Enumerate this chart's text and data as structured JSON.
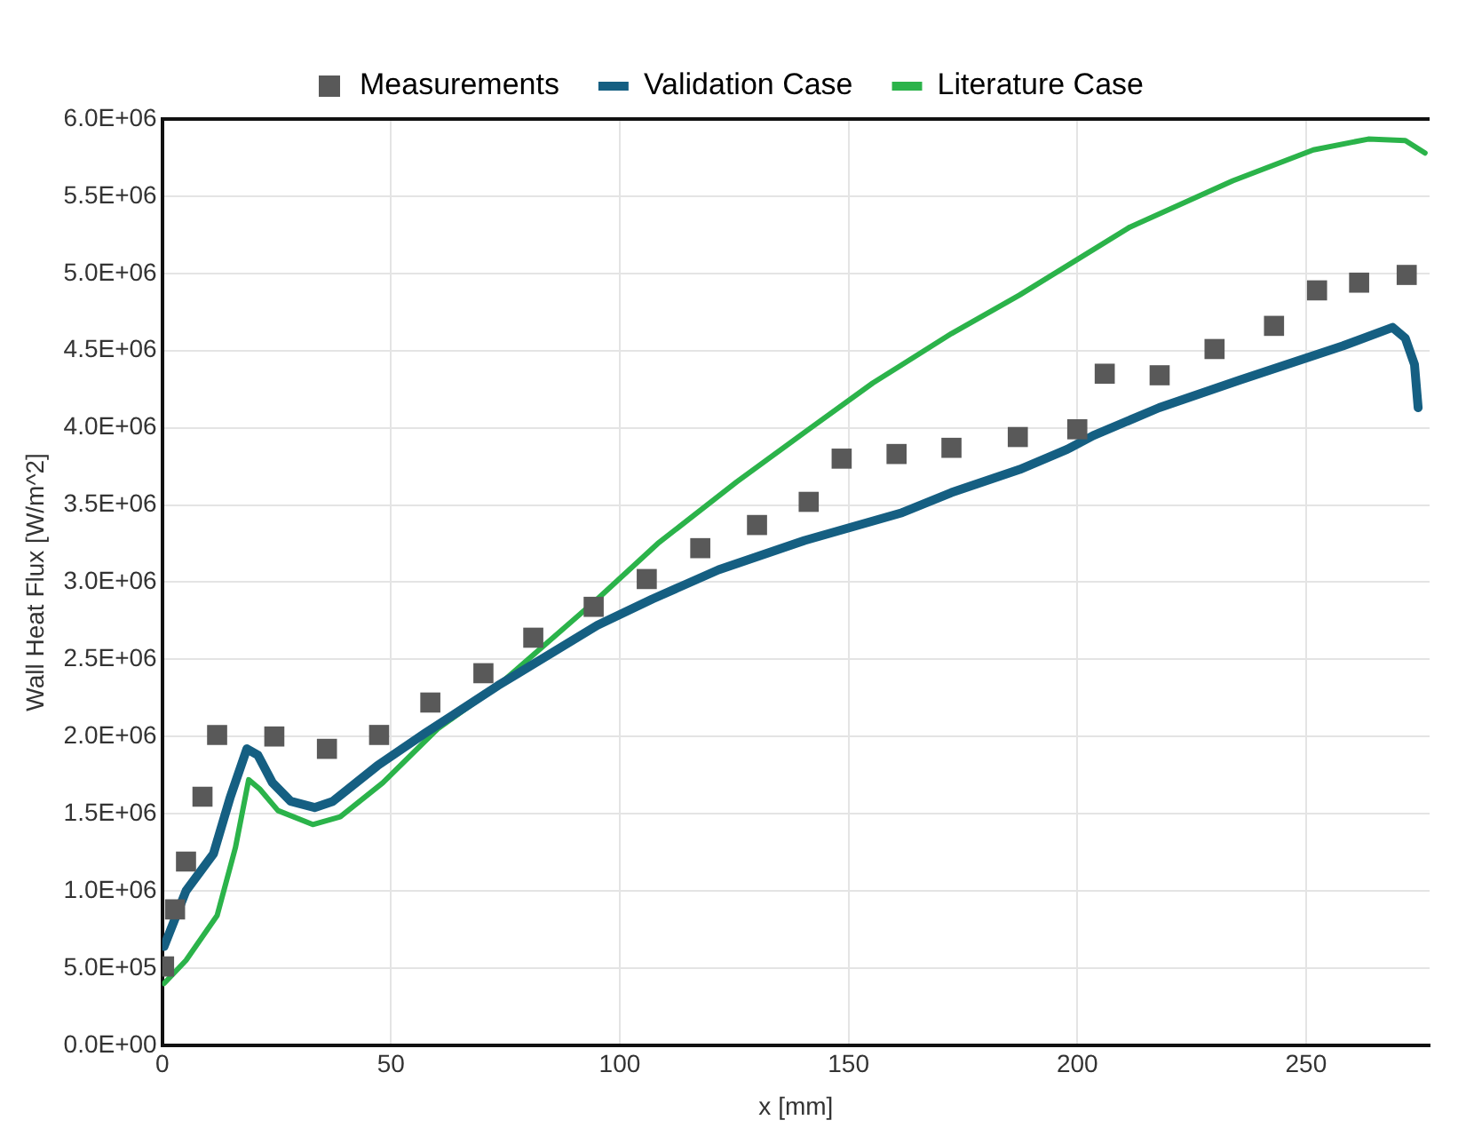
{
  "chart_data": {
    "type": "line",
    "xlabel": "x [mm]",
    "ylabel": "Wall Heat Flux [W/m^2]",
    "xlim": [
      0,
      277
    ],
    "xticks": [
      0,
      50,
      100,
      150,
      200,
      250
    ],
    "ylim": [
      0,
      6000000
    ],
    "yticks": [
      {
        "value": 0,
        "label": "0.0E+00"
      },
      {
        "value": 500000,
        "label": "5.0E+05"
      },
      {
        "value": 1000000,
        "label": "1.0E+06"
      },
      {
        "value": 1500000,
        "label": "1.5E+06"
      },
      {
        "value": 2000000,
        "label": "2.0E+06"
      },
      {
        "value": 2500000,
        "label": "2.5E+06"
      },
      {
        "value": 3000000,
        "label": "3.0E+06"
      },
      {
        "value": 3500000,
        "label": "3.5E+06"
      },
      {
        "value": 4000000,
        "label": "4.0E+06"
      },
      {
        "value": 4500000,
        "label": "4.5E+06"
      },
      {
        "value": 5000000,
        "label": "5.0E+06"
      },
      {
        "value": 5500000,
        "label": "5.5E+06"
      },
      {
        "value": 6000000,
        "label": "6.0E+06"
      }
    ],
    "grid": true,
    "legend": "top",
    "series": [
      {
        "name": "Measurements",
        "type": "scatter",
        "marker": "square",
        "color": "#595959",
        "x": [
          0.4,
          2.8,
          5.2,
          8.8,
          12,
          24.5,
          36,
          47.4,
          58.6,
          70.2,
          81.1,
          94.3,
          105.9,
          117.6,
          130,
          141.3,
          148.5,
          160.5,
          172.5,
          187,
          200,
          206,
          218,
          230,
          243,
          252.4,
          261.6,
          272
        ],
        "values": [
          510000,
          880000,
          1190000,
          1610000,
          2010000,
          2000000,
          1920000,
          2010000,
          2220000,
          2410000,
          2640000,
          2840000,
          3020000,
          3220000,
          3370000,
          3520000,
          3800000,
          3830000,
          3870000,
          3940000,
          3990000,
          4350000,
          4340000,
          4510000,
          4660000,
          4890000,
          4940000,
          4990000
        ]
      },
      {
        "name": "Validation Case",
        "type": "line",
        "marker": "none",
        "color": "#155f82",
        "x": [
          0.4,
          5.2,
          11.2,
          14.8,
          18.5,
          20.9,
          24.1,
          28.1,
          33.3,
          37.3,
          47,
          57.4,
          73.4,
          95.1,
          107.1,
          121.6,
          140.4,
          161.7,
          172.5,
          187.4,
          197.8,
          203.5,
          217.9,
          235.6,
          258,
          268.9,
          271.7,
          273.7,
          274.5
        ],
        "values": [
          640000,
          1000000,
          1240000,
          1600000,
          1920000,
          1880000,
          1700000,
          1580000,
          1540000,
          1580000,
          1810000,
          2020000,
          2330000,
          2720000,
          2890000,
          3080000,
          3270000,
          3450000,
          3580000,
          3730000,
          3860000,
          3950000,
          4130000,
          4310000,
          4530000,
          4650000,
          4580000,
          4410000,
          4130000
        ]
      },
      {
        "name": "Literature Case",
        "type": "line",
        "marker": "none",
        "color": "#2bb34a",
        "x": [
          0.4,
          5.2,
          12,
          16,
          18.9,
          21.3,
          25.3,
          32.9,
          38.9,
          48.2,
          60.2,
          73.4,
          95.1,
          108.3,
          125.6,
          141.3,
          155.3,
          172.5,
          187.4,
          211.5,
          234,
          251.6,
          263.6,
          271.7,
          276
        ],
        "values": [
          400000,
          550000,
          840000,
          1280000,
          1720000,
          1660000,
          1520000,
          1430000,
          1480000,
          1700000,
          2050000,
          2330000,
          2890000,
          3250000,
          3650000,
          3990000,
          4290000,
          4610000,
          4860000,
          5300000,
          5600000,
          5800000,
          5870000,
          5860000,
          5780000
        ]
      }
    ]
  }
}
